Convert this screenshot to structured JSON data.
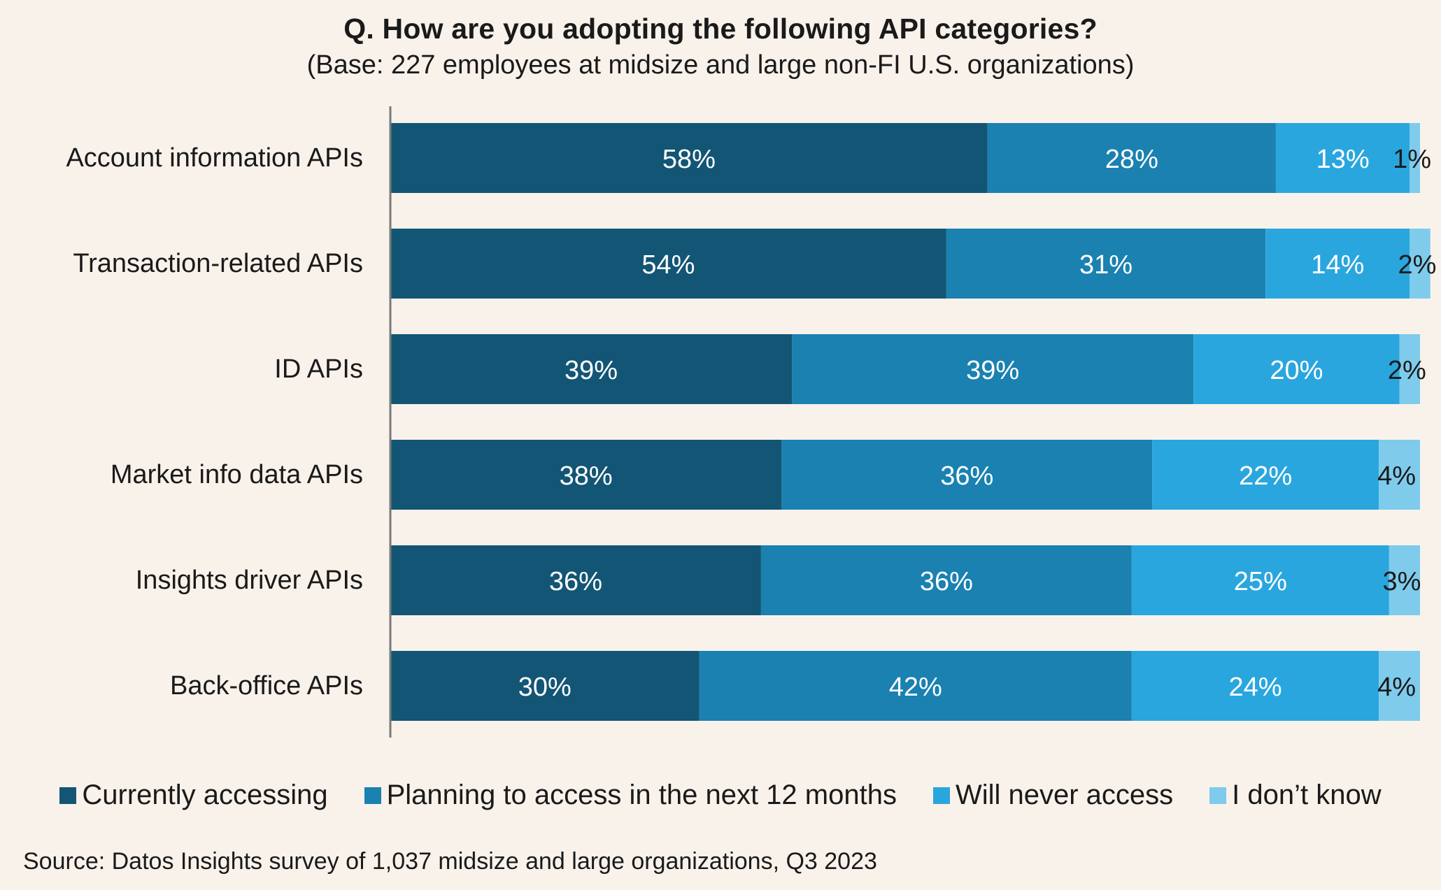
{
  "chart_data": {
    "type": "bar",
    "orientation": "horizontal",
    "stacked": true,
    "title": "Q. How are you adopting the following API categories?",
    "subtitle": "(Base: 227 employees at midsize and large non-FI U.S. organizations)",
    "categories": [
      "Account information APIs",
      "Transaction-related APIs",
      "ID APIs",
      "Market info data APIs",
      "Insights driver APIs",
      "Back-office APIs"
    ],
    "series": [
      {
        "name": "Currently accessing",
        "color": "#135574",
        "values": [
          58,
          54,
          39,
          38,
          36,
          30
        ]
      },
      {
        "name": "Planning to access in the next 12 months",
        "color": "#1a81b0",
        "values": [
          28,
          31,
          39,
          36,
          36,
          42
        ]
      },
      {
        "name": "Will never access",
        "color": "#2aa6de",
        "values": [
          13,
          14,
          20,
          22,
          25,
          24
        ]
      },
      {
        "name": "I don’t know",
        "color": "#7fcbec",
        "values": [
          1,
          2,
          2,
          4,
          3,
          4
        ]
      }
    ],
    "data_labels": [
      [
        "58%",
        "28%",
        "13%",
        "1%"
      ],
      [
        "54%",
        "31%",
        "14%",
        "2%"
      ],
      [
        "39%",
        "39%",
        "20%",
        "2%"
      ],
      [
        "38%",
        "36%",
        "22%",
        "4%"
      ],
      [
        "36%",
        "36%",
        "25%",
        "3%"
      ],
      [
        "30%",
        "42%",
        "24%",
        "4%"
      ]
    ],
    "xlim": [
      0,
      100
    ],
    "grid": false,
    "legend_position": "bottom"
  },
  "source": "Source: Datos Insights survey of 1,037 midsize and large organizations, Q3 2023"
}
